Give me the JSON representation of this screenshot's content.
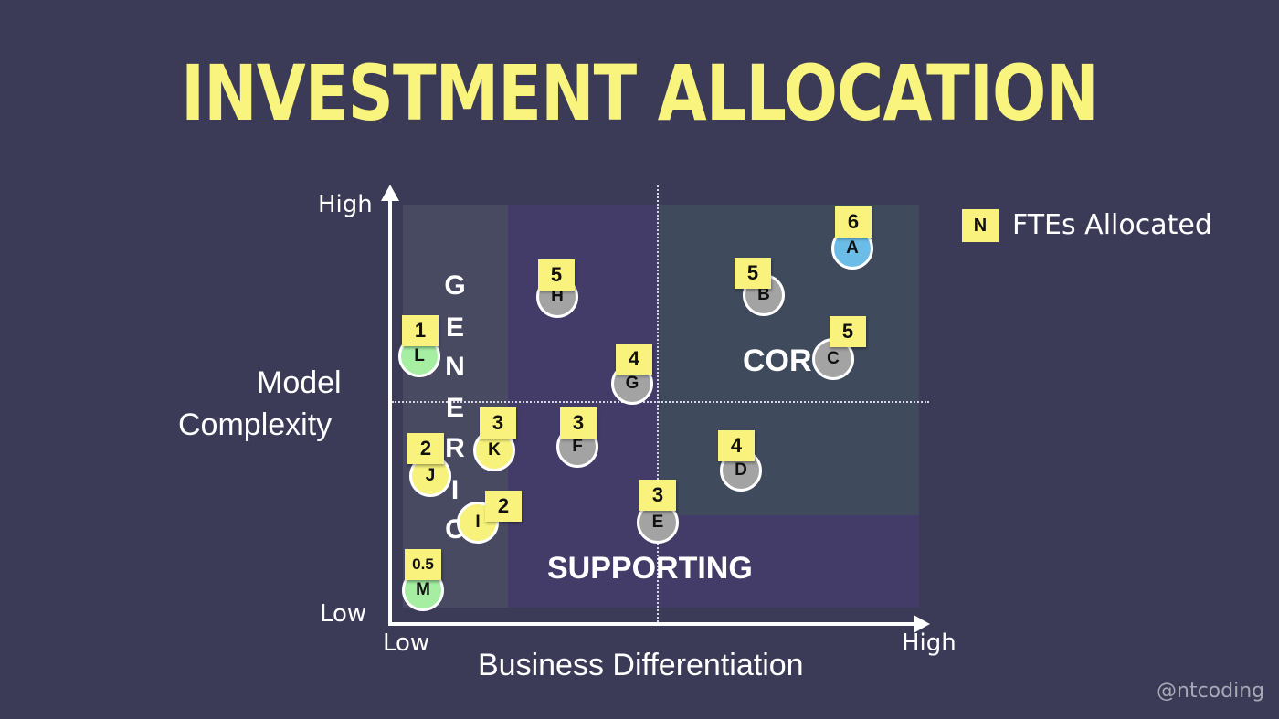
{
  "title": "INVESTMENT ALLOCATION",
  "axes": {
    "y_label_line1": "Model",
    "y_label_line2": "Complexity",
    "x_label": "Business Differentiation",
    "y_high": "High",
    "y_low": "Low",
    "x_low": "Low",
    "x_high": "High"
  },
  "regions": {
    "generic_letters": [
      "G",
      "E",
      "N",
      "E",
      "R",
      "I",
      "C"
    ],
    "core": "COR",
    "supporting": "SUPPORTING"
  },
  "legend": {
    "marker": "N",
    "label": "FTEs Allocated"
  },
  "items": [
    {
      "id": "A",
      "ftes": "6"
    },
    {
      "id": "B",
      "ftes": "5"
    },
    {
      "id": "C",
      "ftes": "5"
    },
    {
      "id": "D",
      "ftes": "4"
    },
    {
      "id": "E",
      "ftes": "3"
    },
    {
      "id": "F",
      "ftes": "3"
    },
    {
      "id": "G",
      "ftes": "4"
    },
    {
      "id": "H",
      "ftes": "5"
    },
    {
      "id": "I",
      "ftes": "2"
    },
    {
      "id": "J",
      "ftes": "2"
    },
    {
      "id": "K",
      "ftes": "3"
    },
    {
      "id": "L",
      "ftes": "1"
    },
    {
      "id": "M",
      "ftes": "0.5"
    }
  ],
  "colors": {
    "background": "#3b3b57",
    "title": "#f9f47d",
    "sticky_note": "#f9f27c",
    "circle_blue": "#6bbde8",
    "circle_gray": "#a3a3a3",
    "circle_green": "#a5eea2",
    "circle_yellow": "#f6f27b"
  },
  "credit": "@ntcoding"
}
